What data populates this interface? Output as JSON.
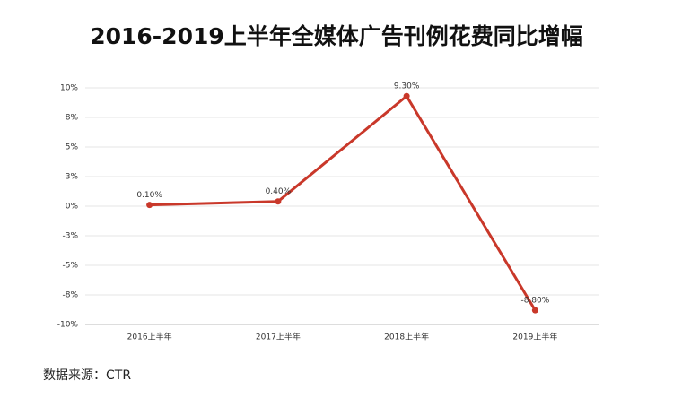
{
  "chart_data": {
    "type": "line",
    "title": "2016-2019上半年全媒体广告刊例花费同比增幅",
    "categories": [
      "2016上半年",
      "2017上半年",
      "2018上半年",
      "2019上半年"
    ],
    "series": [
      {
        "name": "同比增幅",
        "color": "#c9382a",
        "values": [
          0.1,
          0.4,
          9.3,
          -8.8
        ],
        "value_labels": [
          "0.10%",
          "0.40%",
          "9.30%",
          "-8.80%"
        ]
      }
    ],
    "ylim": [
      -10,
      10
    ],
    "yticks": [
      {
        "value": -10,
        "label": "-10%"
      },
      {
        "value": -7.5,
        "label": "-8%"
      },
      {
        "value": -5,
        "label": "-5%"
      },
      {
        "value": -2.5,
        "label": "-3%"
      },
      {
        "value": 0,
        "label": "0%"
      },
      {
        "value": 2.5,
        "label": "3%"
      },
      {
        "value": 5,
        "label": "5%"
      },
      {
        "value": 7.5,
        "label": "8%"
      },
      {
        "value": 10,
        "label": "10%"
      }
    ],
    "grid": true,
    "source": "数据来源：CTR"
  }
}
